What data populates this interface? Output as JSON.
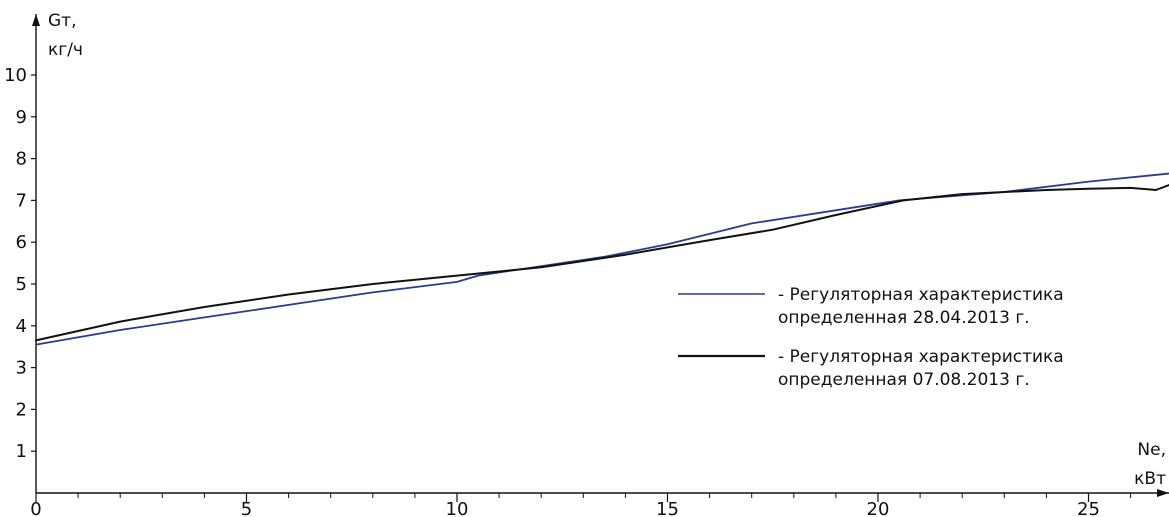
{
  "chart_data": {
    "type": "line",
    "xlabel": [
      "Ne,",
      "кВт"
    ],
    "ylabel": [
      "Gт,",
      "кг/ч"
    ],
    "xlim": [
      0,
      27
    ],
    "ylim": [
      0,
      10.5
    ],
    "x_ticks": [
      0,
      5,
      10,
      15,
      20,
      25
    ],
    "x_minor_step": 1,
    "y_ticks": [
      1,
      2,
      3,
      4,
      5,
      6,
      7,
      8,
      9,
      10
    ],
    "grid": false,
    "legend_position": "center-right",
    "series": [
      {
        "name": [
          "- Регуляторная характеристика",
          "определенная 28.04.2013 г."
        ],
        "color": "#2b3a8f",
        "x": [
          0,
          2,
          4,
          6,
          8,
          10,
          10.5,
          13.5,
          15,
          17,
          20.5,
          23,
          25,
          27
        ],
        "y": [
          3.55,
          3.9,
          4.2,
          4.5,
          4.8,
          5.05,
          5.2,
          5.65,
          5.95,
          6.45,
          7.0,
          7.2,
          7.45,
          7.65
        ]
      },
      {
        "name": [
          "- Регуляторная характеристика",
          "определенная 07.08.2013 г."
        ],
        "color": "#111111",
        "x": [
          0,
          2,
          4,
          6,
          8,
          10,
          12,
          14,
          16,
          17.5,
          19,
          20.6,
          22,
          23,
          24,
          25,
          26,
          26.6,
          27
        ],
        "y": [
          3.65,
          4.1,
          4.45,
          4.75,
          5.0,
          5.2,
          5.4,
          5.7,
          6.05,
          6.3,
          6.65,
          7.0,
          7.15,
          7.2,
          7.25,
          7.28,
          7.3,
          7.25,
          7.4
        ]
      }
    ]
  }
}
